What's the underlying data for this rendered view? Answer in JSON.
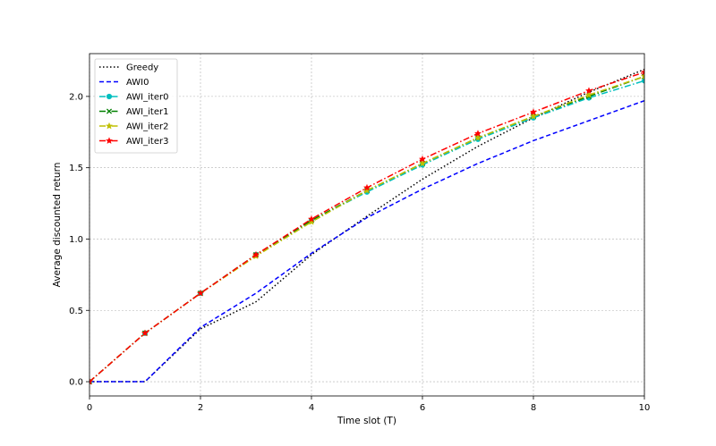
{
  "chart_data": {
    "type": "line",
    "title": "",
    "xlabel": "Time slot (T)",
    "ylabel": "Average discounted return",
    "xlim": [
      0,
      10
    ],
    "ylim": [
      -0.1,
      2.3
    ],
    "xticks": [
      0,
      2,
      4,
      6,
      8,
      10
    ],
    "yticks": [
      0.0,
      0.5,
      1.0,
      1.5,
      2.0
    ],
    "xtick_labels": [
      "0",
      "2",
      "4",
      "6",
      "8",
      "10"
    ],
    "ytick_labels": [
      "0.0",
      "0.5",
      "1.0",
      "1.5",
      "2.0"
    ],
    "grid": true,
    "legend_position": "top-left",
    "x": [
      0,
      1,
      2,
      3,
      4,
      5,
      6,
      7,
      8,
      9,
      10
    ],
    "series": [
      {
        "name": "Greedy",
        "color": "#000000",
        "linestyle": "dotted",
        "marker": "none",
        "values": [
          0.0,
          0.0,
          0.37,
          0.56,
          0.89,
          1.16,
          1.42,
          1.65,
          1.85,
          2.03,
          2.19
        ]
      },
      {
        "name": "AWI0",
        "color": "#0000ff",
        "linestyle": "dashed",
        "marker": "none",
        "values": [
          0.0,
          0.0,
          0.38,
          0.62,
          0.9,
          1.15,
          1.35,
          1.53,
          1.69,
          1.83,
          1.97
        ]
      },
      {
        "name": "AWI_iter0",
        "color": "#00bfbf",
        "linestyle": "dashdot",
        "marker": "circle",
        "values": [
          0.0,
          0.34,
          0.62,
          0.89,
          1.13,
          1.33,
          1.52,
          1.7,
          1.85,
          1.99,
          2.11
        ]
      },
      {
        "name": "AWI_iter1",
        "color": "#008000",
        "linestyle": "dashdot",
        "marker": "x",
        "values": [
          0.0,
          0.34,
          0.62,
          0.89,
          1.13,
          1.34,
          1.53,
          1.71,
          1.86,
          2.0,
          2.14
        ]
      },
      {
        "name": "AWI_iter2",
        "color": "#bfbf00",
        "linestyle": "dashdot",
        "marker": "star",
        "values": [
          0.0,
          0.34,
          0.62,
          0.88,
          1.12,
          1.34,
          1.53,
          1.71,
          1.86,
          2.01,
          2.14
        ]
      },
      {
        "name": "AWI_iter3",
        "color": "#ff0000",
        "linestyle": "dashdot",
        "marker": "star",
        "values": [
          0.0,
          0.34,
          0.62,
          0.89,
          1.14,
          1.36,
          1.56,
          1.74,
          1.89,
          2.04,
          2.17
        ]
      }
    ]
  }
}
